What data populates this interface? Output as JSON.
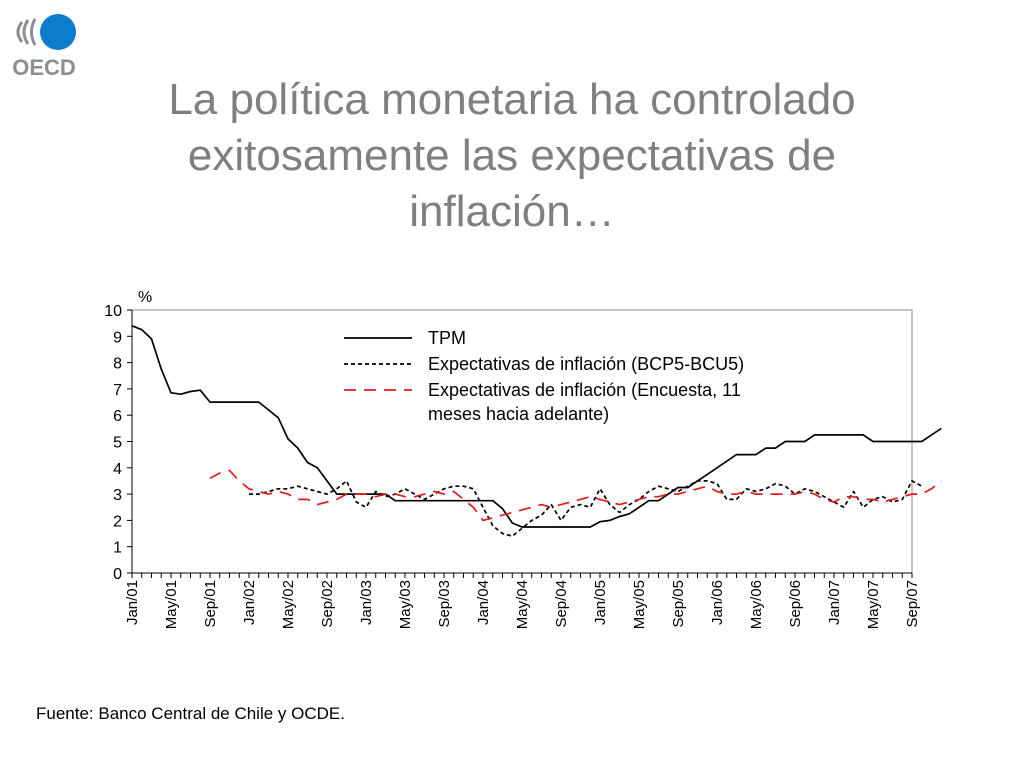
{
  "header": {
    "logo_text": "OECD",
    "title_lines": [
      "La política monetaria ha controlado",
      "exitosamente las expectativas de",
      "inflación…"
    ]
  },
  "footer": {
    "source": "Fuente: Banco Central de Chile y OCDE."
  },
  "colors": {
    "title": "#7f7f7f",
    "logo_blue": "#0e7ccc",
    "logo_gray": "#8a8f95",
    "series_red": "#e31a1c",
    "series_black": "#000000"
  },
  "chart_data": {
    "type": "line",
    "unit_label": "%",
    "ylim": [
      0,
      10
    ],
    "y_ticks": [
      0,
      1,
      2,
      3,
      4,
      5,
      6,
      7,
      8,
      9,
      10
    ],
    "x_tick_labels": [
      "Jan/01",
      "May/01",
      "Sep/01",
      "Jan/02",
      "May/02",
      "Sep/02",
      "Jan/03",
      "May/03",
      "Sep/03",
      "Jan/04",
      "May/04",
      "Sep/04",
      "Jan/05",
      "May/05",
      "Sep/05",
      "Jan/06",
      "May/06",
      "Sep/06",
      "Jan/07",
      "May/07",
      "Sep/07"
    ],
    "grid": false,
    "legend_position": "top-center",
    "series": [
      {
        "name": "TPM",
        "style": "solid",
        "color": "#000000",
        "start": "Jan/01",
        "values": [
          9.4,
          9.25,
          8.9,
          7.75,
          6.85,
          6.8,
          6.9,
          6.95,
          6.5,
          6.5,
          6.5,
          6.5,
          6.5,
          6.5,
          6.2,
          5.9,
          5.1,
          4.75,
          4.2,
          4.0,
          3.5,
          3.0,
          3.0,
          3.0,
          3.0,
          3.0,
          3.0,
          2.75,
          2.75,
          2.75,
          2.75,
          2.75,
          2.75,
          2.75,
          2.75,
          2.75,
          2.75,
          2.75,
          2.45,
          1.9,
          1.75,
          1.75,
          1.75,
          1.75,
          1.75,
          1.75,
          1.75,
          1.75,
          1.95,
          2.0,
          2.15,
          2.25,
          2.5,
          2.75,
          2.75,
          3.0,
          3.25,
          3.25,
          3.5,
          3.75,
          4.0,
          4.25,
          4.5,
          4.5,
          4.5,
          4.75,
          4.75,
          5.0,
          5.0,
          5.0,
          5.25,
          5.25,
          5.25,
          5.25,
          5.25,
          5.25,
          5.0,
          5.0,
          5.0,
          5.0,
          5.0,
          5.0,
          5.25,
          5.5
        ]
      },
      {
        "name": "Expectativas de inflación (BCP5-BCU5)",
        "style": "dotted",
        "color": "#000000",
        "start": "Jan/02",
        "values": [
          3.0,
          3.0,
          3.1,
          3.2,
          3.2,
          3.3,
          3.2,
          3.1,
          3.0,
          3.2,
          3.5,
          2.7,
          2.5,
          3.1,
          2.9,
          3.0,
          3.2,
          3.0,
          2.8,
          3.0,
          3.2,
          3.3,
          3.3,
          3.2,
          2.5,
          1.8,
          1.5,
          1.4,
          1.7,
          2.0,
          2.2,
          2.6,
          2.0,
          2.5,
          2.6,
          2.5,
          3.2,
          2.6,
          2.3,
          2.6,
          2.8,
          3.1,
          3.3,
          3.2,
          3.1,
          3.3,
          3.5,
          3.5,
          3.4,
          2.8,
          2.8,
          3.2,
          3.1,
          3.2,
          3.4,
          3.3,
          3.0,
          3.2,
          3.1,
          2.9,
          2.7,
          2.5,
          3.1,
          2.5,
          2.8,
          2.9,
          2.7,
          2.8,
          3.5,
          3.3
        ]
      },
      {
        "name": "Expectativas de inflación (Encuesta, 11 meses hacia adelante)",
        "style": "dashed",
        "color": "#e31a1c",
        "start": "Sep/01",
        "values": [
          3.6,
          3.8,
          3.9,
          3.5,
          3.2,
          3.1,
          3.0,
          3.1,
          3.0,
          2.8,
          2.8,
          2.6,
          2.7,
          2.8,
          3.0,
          3.0,
          3.0,
          2.9,
          3.0,
          3.0,
          2.9,
          2.9,
          3.0,
          3.1,
          3.0,
          3.1,
          2.8,
          2.5,
          2.0,
          2.1,
          2.2,
          2.3,
          2.4,
          2.5,
          2.6,
          2.5,
          2.6,
          2.7,
          2.8,
          2.9,
          2.8,
          2.7,
          2.6,
          2.7,
          2.8,
          2.9,
          2.9,
          3.0,
          3.0,
          3.1,
          3.2,
          3.3,
          3.1,
          3.0,
          3.0,
          3.1,
          3.0,
          3.0,
          3.0,
          3.0,
          3.0,
          3.1,
          3.0,
          2.8,
          2.7,
          2.9,
          2.9,
          2.8,
          2.8,
          2.7,
          2.8,
          2.9,
          3.0,
          3.0,
          3.2,
          3.5
        ]
      }
    ]
  }
}
